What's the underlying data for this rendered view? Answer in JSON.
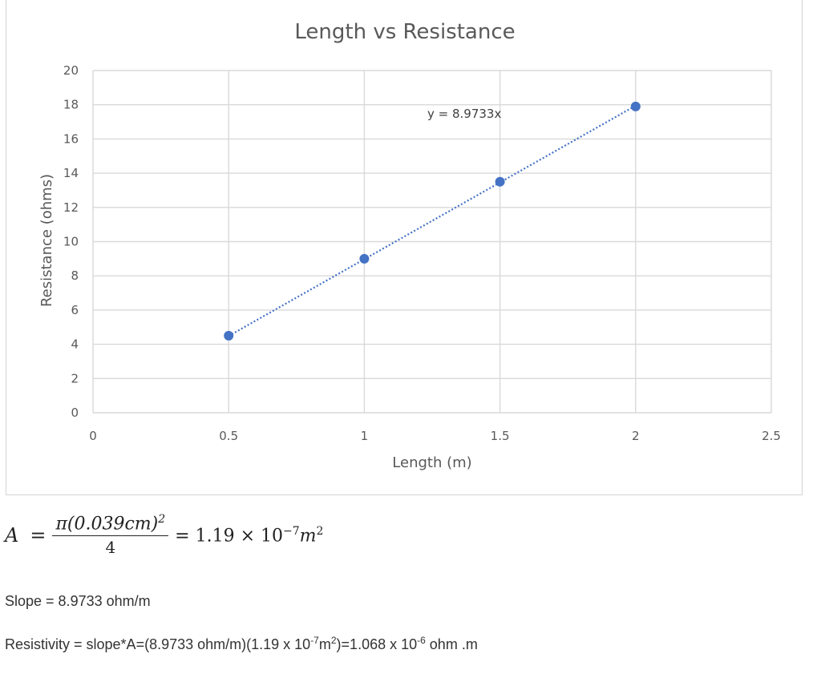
{
  "chart_data": {
    "type": "scatter",
    "title": "Length vs Resistance",
    "xlabel": "Length (m)",
    "ylabel": "Resistance (ohms)",
    "xlim": [
      0,
      2.5
    ],
    "ylim": [
      0,
      20
    ],
    "xticks": [
      "0",
      "0.5",
      "1",
      "1.5",
      "2",
      "2.5"
    ],
    "yticks": [
      "0",
      "2",
      "4",
      "6",
      "8",
      "10",
      "12",
      "14",
      "16",
      "18",
      "20"
    ],
    "grid": true,
    "legend": "none",
    "x": [
      0.5,
      1,
      1.5,
      2
    ],
    "y": [
      4.5,
      9.0,
      13.5,
      17.9
    ],
    "trendline": {
      "type": "linear",
      "style": "dotted",
      "slope": 8.9733,
      "label": "y = 8.9733x",
      "x_range": [
        0.5,
        2
      ]
    },
    "colors": {
      "points": "#4472c4",
      "grid": "#d9d9d9",
      "text": "#595959"
    }
  },
  "formula": {
    "lhs": "A",
    "eq": "=",
    "numerator": "π(0.039cm)",
    "numerator_exp": "2",
    "denominator": "4",
    "rhs": "= 1.19 × 10",
    "rhs_exp": "−7",
    "rhs_unit": "m",
    "rhs_unit_exp": "2"
  },
  "text": {
    "slope": "Slope = 8.9733 ohm/m",
    "resistivity_part1": "Resistivity = slope*A=(8.9733 ohm/m)(1.19 x 10",
    "resistivity_exp1": "-7",
    "resistivity_part2": "m",
    "resistivity_exp2": "2",
    "resistivity_part3": ")=1.068 x 10",
    "resistivity_exp3": "-6",
    "resistivity_part4": " ohm .m"
  }
}
